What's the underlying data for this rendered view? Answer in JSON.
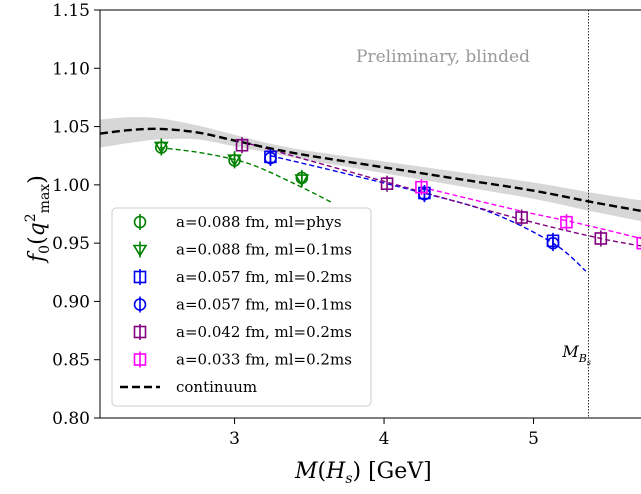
{
  "chart_data": {
    "type": "scatter",
    "xlabel": "M(H_s) [GeV]",
    "ylabel": "f_0(q^2_max)",
    "xlim": [
      2.1,
      5.75
    ],
    "ylim": [
      0.8,
      1.15
    ],
    "xticks": [
      3,
      4,
      5
    ],
    "yticks": [
      0.8,
      0.85,
      0.9,
      0.95,
      1.0,
      1.05,
      1.1,
      1.15
    ],
    "xtick_labels": [
      "3",
      "4",
      "5"
    ],
    "ytick_labels": [
      "0.80",
      "0.85",
      "0.90",
      "0.95",
      "1.00",
      "1.05",
      "1.10",
      "1.15"
    ],
    "grid": false,
    "legend_position": "lower-left",
    "annotation": "Preliminary, blinded",
    "vline": {
      "x": 5.367,
      "label": "M_{B_s}"
    },
    "series": [
      {
        "name": "a=0.088 fm, ml=phys",
        "color": "#008000",
        "marker": "circle",
        "x": [
          2.51,
          3.0,
          3.45
        ],
        "y": [
          1.032,
          1.021,
          1.006
        ],
        "fit": {
          "x": [
            2.5,
            2.8,
            3.1,
            3.4,
            3.65
          ],
          "y": [
            1.032,
            1.027,
            1.018,
            1.001,
            0.985
          ]
        }
      },
      {
        "name": "a=0.088 fm, ml=0.1ms",
        "color": "#008000",
        "marker": "triangle-down",
        "x": [
          2.51,
          3.0,
          3.45
        ],
        "y": [
          1.033,
          1.022,
          1.005
        ]
      },
      {
        "name": "a=0.057 fm, ml=0.2ms",
        "color": "#0000ee",
        "marker": "square",
        "x": [
          3.24,
          4.27,
          5.13
        ],
        "y": [
          1.024,
          0.993,
          0.952
        ]
      },
      {
        "name": "a=0.057 fm, ml=0.1ms",
        "color": "#0000ee",
        "marker": "circle",
        "x": [
          3.24,
          4.27,
          5.13
        ],
        "y": [
          1.023,
          0.992,
          0.95
        ],
        "fit": {
          "x": [
            3.24,
            3.7,
            4.2,
            4.7,
            5.13,
            5.35
          ],
          "y": [
            1.025,
            1.011,
            0.995,
            0.977,
            0.95,
            0.926
          ]
        }
      },
      {
        "name": "a=0.042 fm, ml=0.2ms",
        "color": "#800080",
        "marker": "square",
        "x": [
          3.05,
          4.02,
          4.92,
          5.45
        ],
        "y": [
          1.034,
          1.001,
          0.972,
          0.954
        ],
        "fit": {
          "x": [
            3.05,
            4.0,
            4.9,
            5.45,
            5.75
          ],
          "y": [
            1.037,
            1.003,
            0.971,
            0.954,
            0.947
          ]
        }
      },
      {
        "name": "a=0.033 fm, ml=0.2ms",
        "color": "#ff00ff",
        "marker": "square",
        "x": [
          4.25,
          5.22,
          5.73
        ],
        "y": [
          0.998,
          0.968,
          0.95
        ],
        "fit": {
          "x": [
            4.25,
            4.9,
            5.3,
            5.75
          ],
          "y": [
            0.998,
            0.978,
            0.967,
            0.953
          ]
        }
      },
      {
        "name": "continuum",
        "color": "#000000",
        "marker": "none",
        "linestyle": "dashed",
        "x": [
          2.1,
          2.3,
          2.5,
          2.75,
          3.0,
          3.25,
          3.5,
          4.0,
          4.5,
          5.0,
          5.4,
          5.75
        ],
        "y": [
          1.044,
          1.047,
          1.048,
          1.045,
          1.038,
          1.031,
          1.025,
          1.015,
          1.005,
          0.995,
          0.985,
          0.977
        ],
        "band": [
          0.012,
          0.011,
          0.009,
          0.006,
          0.005,
          0.004,
          0.004,
          0.005,
          0.006,
          0.007,
          0.008,
          0.009
        ]
      }
    ]
  }
}
